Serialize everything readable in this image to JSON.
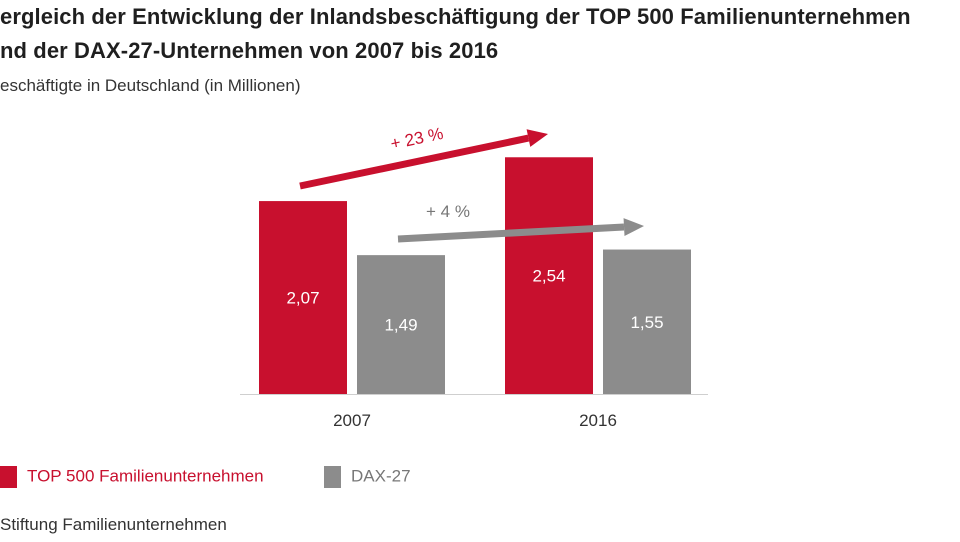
{
  "title_line1": "ergleich der Entwicklung der Inlandsbeschäftigung der TOP 500 Familienunternehmen",
  "title_line2": "nd der DAX-27-Unternehmen von 2007 bis 2016",
  "subtitle": "eschäftigte in Deutschland (in Millionen)",
  "source": "Stiftung Familienunternehmen",
  "colors": {
    "top500": "#c8102e",
    "dax27": "#8c8c8c"
  },
  "chart_data": {
    "type": "bar",
    "categories": [
      "2007",
      "2016"
    ],
    "series": [
      {
        "name": "TOP 500 Familienunternehmen",
        "values": [
          2.07,
          2.54
        ],
        "labels": [
          "2,07",
          "2,54"
        ]
      },
      {
        "name": "DAX-27",
        "values": [
          1.49,
          1.55
        ],
        "labels": [
          "1,49",
          "1,55"
        ]
      }
    ],
    "ylim": [
      0,
      2.6
    ],
    "annotations": [
      {
        "text": "+ 23 %",
        "series": "TOP 500 Familienunternehmen"
      },
      {
        "text": "+ 4 %",
        "series": "DAX-27"
      }
    ],
    "legend_position": "bottom-left"
  }
}
